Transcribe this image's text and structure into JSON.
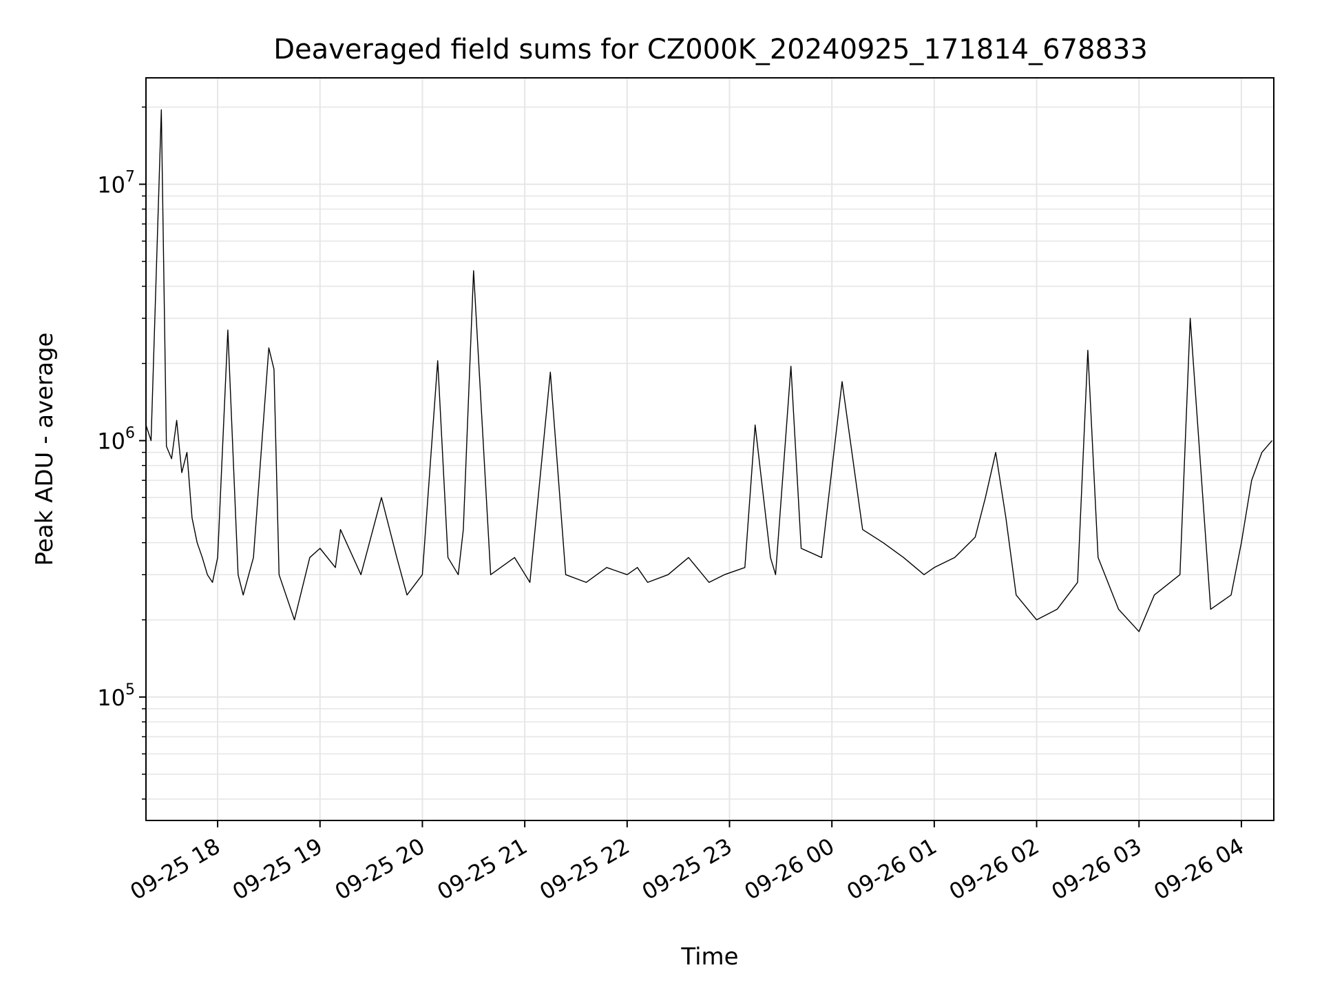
{
  "chart_data": {
    "type": "line",
    "title": "Deaveraged field sums for CZ000K_20240925_171814_678833",
    "xlabel": "Time",
    "ylabel": "Peak ADU - average",
    "yscale": "log",
    "ylim": [
      33000,
      26000000
    ],
    "xlim": [
      "2024-09-25 17:18",
      "2024-09-26 04:19"
    ],
    "grid": true,
    "line_color": "#000000",
    "grid_color": "#e6e6e6",
    "x_ticks": [
      "09-25 18",
      "09-25 19",
      "09-25 20",
      "09-25 21",
      "09-25 22",
      "09-25 23",
      "09-26 00",
      "09-26 01",
      "09-26 02",
      "09-26 03",
      "09-26 04"
    ],
    "y_ticks": [
      {
        "base": "10",
        "exp": "5",
        "value": 100000
      },
      {
        "base": "10",
        "exp": "6",
        "value": 1000000
      },
      {
        "base": "10",
        "exp": "7",
        "value": 10000000
      }
    ],
    "series": [
      {
        "x": [
          "2024-09-25 17:18",
          "2024-09-25 17:21",
          "2024-09-25 17:27",
          "2024-09-25 17:30",
          "2024-09-25 17:33",
          "2024-09-25 17:36",
          "2024-09-25 17:39",
          "2024-09-25 17:42",
          "2024-09-25 17:45",
          "2024-09-25 17:48",
          "2024-09-25 17:51",
          "2024-09-25 17:54",
          "2024-09-25 17:57",
          "2024-09-25 18:00",
          "2024-09-25 18:06",
          "2024-09-25 18:12",
          "2024-09-25 18:15",
          "2024-09-25 18:21",
          "2024-09-25 18:30",
          "2024-09-25 18:33",
          "2024-09-25 18:36",
          "2024-09-25 18:45",
          "2024-09-25 18:54",
          "2024-09-25 19:00",
          "2024-09-25 19:09",
          "2024-09-25 19:12",
          "2024-09-25 19:24",
          "2024-09-25 19:36",
          "2024-09-25 19:45",
          "2024-09-25 19:51",
          "2024-09-25 20:00",
          "2024-09-25 20:09",
          "2024-09-25 20:15",
          "2024-09-25 20:21",
          "2024-09-25 20:24",
          "2024-09-25 20:30",
          "2024-09-25 20:40",
          "2024-09-25 20:54",
          "2024-09-25 21:03",
          "2024-09-25 21:15",
          "2024-09-25 21:24",
          "2024-09-25 21:36",
          "2024-09-25 21:48",
          "2024-09-25 22:00",
          "2024-09-25 22:06",
          "2024-09-25 22:12",
          "2024-09-25 22:24",
          "2024-09-25 22:36",
          "2024-09-25 22:48",
          "2024-09-25 22:57",
          "2024-09-25 23:09",
          "2024-09-25 23:15",
          "2024-09-25 23:24",
          "2024-09-25 23:27",
          "2024-09-25 23:36",
          "2024-09-25 23:42",
          "2024-09-25 23:54",
          "2024-09-26 00:06",
          "2024-09-26 00:18",
          "2024-09-26 00:30",
          "2024-09-26 00:42",
          "2024-09-26 00:54",
          "2024-09-26 01:00",
          "2024-09-26 01:12",
          "2024-09-26 01:24",
          "2024-09-26 01:30",
          "2024-09-26 01:36",
          "2024-09-26 01:42",
          "2024-09-26 01:48",
          "2024-09-26 02:00",
          "2024-09-26 02:12",
          "2024-09-26 02:24",
          "2024-09-26 02:30",
          "2024-09-26 02:36",
          "2024-09-26 02:48",
          "2024-09-26 03:00",
          "2024-09-26 03:09",
          "2024-09-26 03:24",
          "2024-09-26 03:30",
          "2024-09-26 03:42",
          "2024-09-26 03:54",
          "2024-09-26 04:00",
          "2024-09-26 04:06",
          "2024-09-26 04:12",
          "2024-09-26 04:18"
        ],
        "y": [
          1150000,
          1000000,
          19500000,
          950000,
          850000,
          1200000,
          750000,
          900000,
          500000,
          400000,
          350000,
          300000,
          280000,
          350000,
          2700000,
          300000,
          250000,
          350000,
          2300000,
          1900000,
          300000,
          200000,
          350000,
          380000,
          320000,
          450000,
          300000,
          600000,
          350000,
          250000,
          300000,
          2050000,
          350000,
          300000,
          450000,
          4600000,
          300000,
          350000,
          280000,
          1850000,
          300000,
          280000,
          320000,
          300000,
          320000,
          280000,
          300000,
          350000,
          280000,
          300000,
          320000,
          1150000,
          350000,
          300000,
          1950000,
          380000,
          350000,
          1700000,
          450000,
          400000,
          350000,
          300000,
          320000,
          350000,
          420000,
          600000,
          900000,
          500000,
          250000,
          200000,
          220000,
          280000,
          2250000,
          350000,
          220000,
          180000,
          250000,
          300000,
          3000000,
          220000,
          250000,
          400000,
          700000,
          900000,
          1000000
        ]
      }
    ]
  }
}
